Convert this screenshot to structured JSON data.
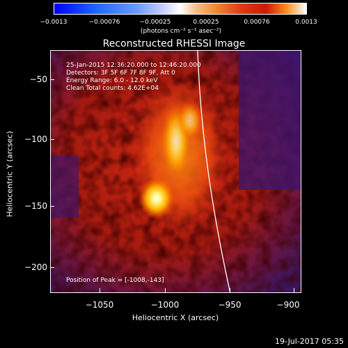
{
  "colorbar": {
    "ticks": [
      "−0.0013",
      "−0.00076",
      "−0.00025",
      "0.00025",
      "0.00076",
      "0.0013"
    ],
    "unit": "(photons cm⁻² s⁻¹ asec⁻²)"
  },
  "title": "Reconstructed RHESSI Image",
  "info": {
    "time": "25-Jan-2015 12:36:20.000 to 12:46:20.000",
    "detectors": "Detectors: 3F 5F 6F 7F 8F 9F, Att 0",
    "energy": "Energy Range: 6.0 - 12.0 keV",
    "method": "Clean     Total counts: 4.62E+04",
    "peak": "Position of Peak = [-1008,-143]"
  },
  "axes": {
    "ylabel": "Heliocentric Y (arcsec)",
    "xlabel": "Heliocentric X (arcsec)",
    "yticks": [
      "−50",
      "−100",
      "−150",
      "−200"
    ],
    "xticks": [
      "−1050",
      "−1000",
      "−950",
      "−900"
    ]
  },
  "footer": "19-Jul-2017 05:35"
}
